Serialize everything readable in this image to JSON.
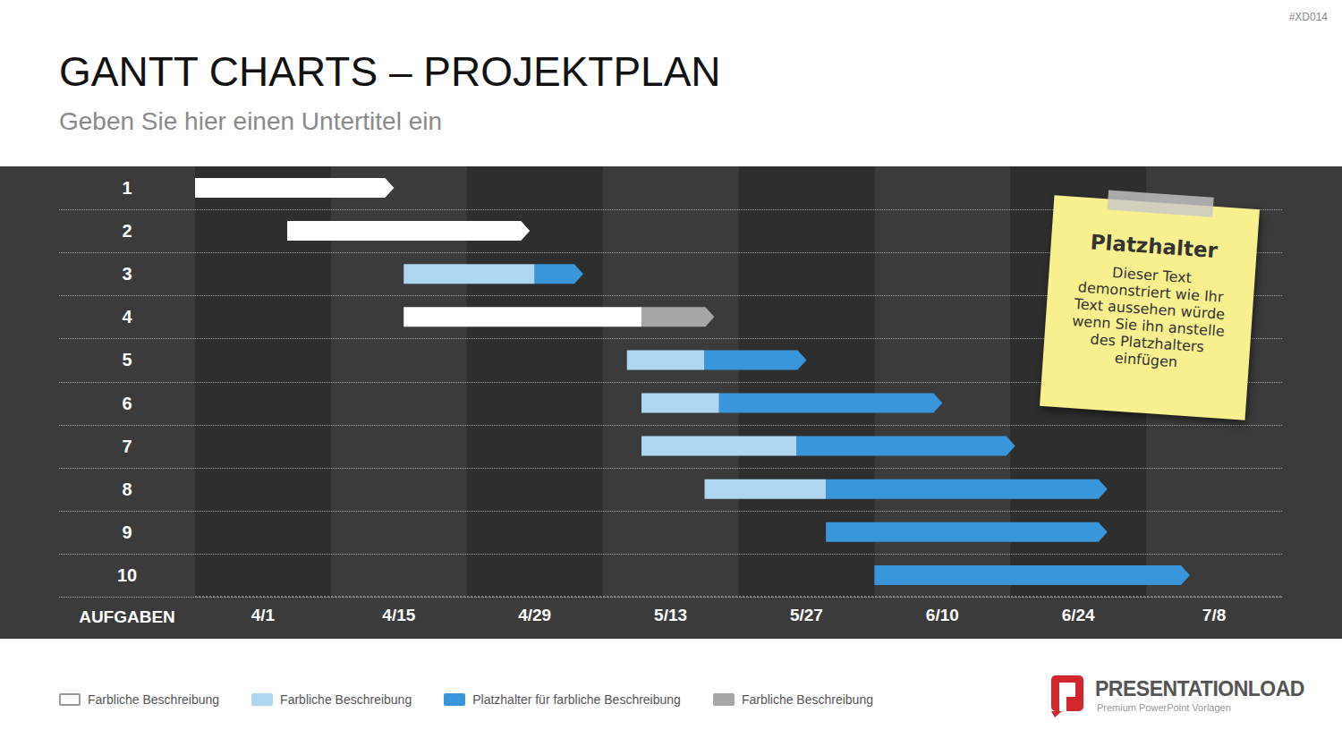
{
  "chart_data": {
    "type": "bar",
    "orientation": "horizontal",
    "title": "GANTT CHARTS – PROJEKTPLAN",
    "subtitle": "Geben Sie hier einen Untertitel ein",
    "ylabel": "AUFGABEN",
    "categories": [
      "1",
      "2",
      "3",
      "4",
      "5",
      "6",
      "7",
      "8",
      "9",
      "10"
    ],
    "series": [
      {
        "name": "Farbliche Beschreibung",
        "color": "#ffffff",
        "values": [
          [
            -7,
            13.5
          ],
          [
            2.5,
            27.5
          ],
          null,
          [
            14.5,
            39
          ],
          null,
          null,
          null,
          null,
          null,
          null
        ]
      },
      {
        "name": "Farbliche Beschreibung",
        "color": "#aed6f1",
        "values": [
          null,
          null,
          [
            14.5,
            28
          ],
          null,
          [
            37.5,
            45.5
          ],
          [
            39,
            47
          ],
          [
            39,
            55
          ],
          [
            45.5,
            58
          ],
          null,
          null
        ]
      },
      {
        "name": "Platzhalter für farbliche Beschreibung",
        "color": "#3a96db",
        "values": [
          null,
          null,
          [
            28,
            33
          ],
          null,
          [
            45.5,
            56
          ],
          [
            47,
            70
          ],
          [
            55,
            77.5
          ],
          [
            58,
            87
          ],
          [
            58,
            87
          ],
          [
            63,
            95.5
          ]
        ]
      },
      {
        "name": "Farbliche Beschreibung",
        "color": "#a6a6a6",
        "values": [
          null,
          null,
          null,
          [
            39,
            46.5
          ],
          null,
          null,
          null,
          null,
          null,
          null
        ]
      }
    ],
    "xlim": [
      -7,
      105
    ],
    "xticks": [
      {
        "value": 0,
        "label": "4/1"
      },
      {
        "value": 14,
        "label": "4/15"
      },
      {
        "value": 28,
        "label": "4/29"
      },
      {
        "value": 42,
        "label": "5/13"
      },
      {
        "value": 56,
        "label": "5/27"
      },
      {
        "value": 70,
        "label": "6/10"
      },
      {
        "value": 84,
        "label": "6/24"
      },
      {
        "value": 98,
        "label": "7/8"
      }
    ],
    "grid": true,
    "legend": "bottom",
    "annotations": [
      {
        "title": "Platzhalter",
        "text": [
          "Dieser Text",
          "demonstriert wie Ihr",
          "Text aussehen würde",
          "wenn Sie ihn anstelle",
          "des Platzhalters",
          "einfügen"
        ]
      }
    ],
    "watermark": "#XD014",
    "logo": {
      "text": "PRESENTATIONLOAD",
      "tagline": "Premium PowerPoint Vorlagen"
    }
  }
}
